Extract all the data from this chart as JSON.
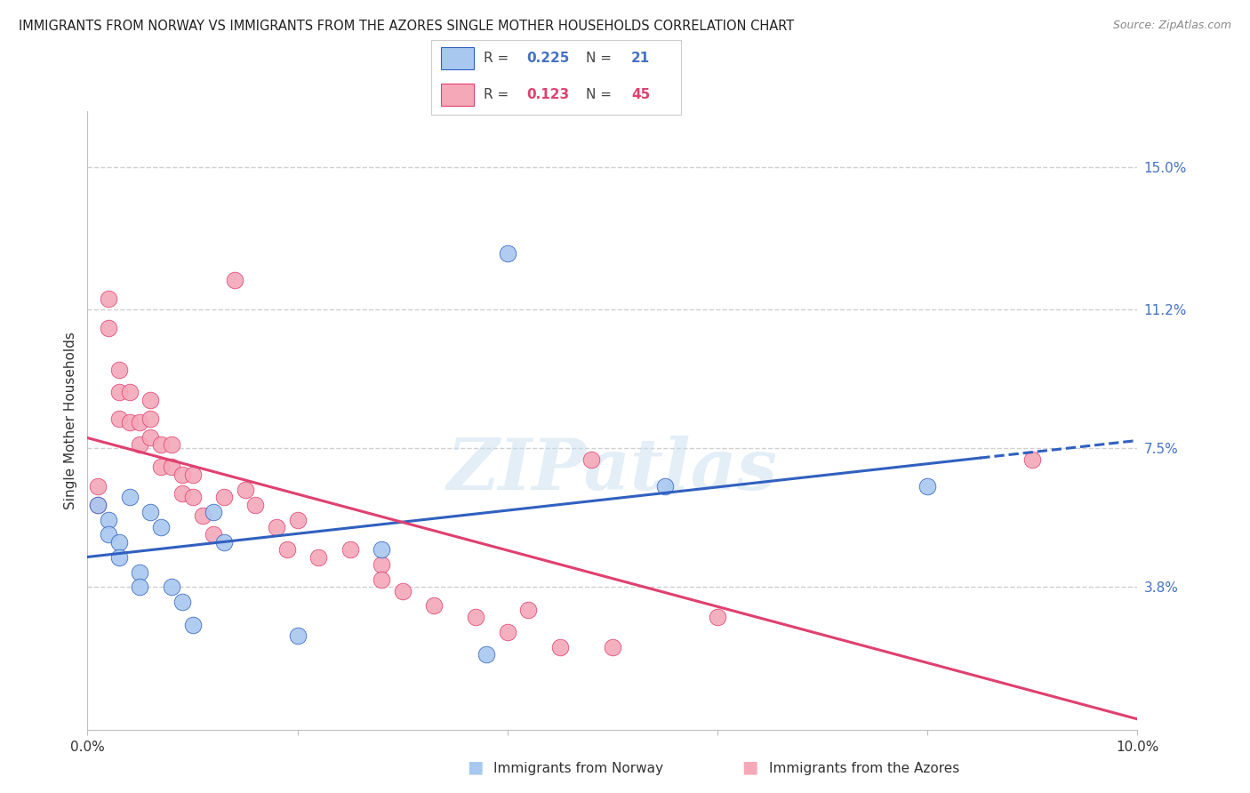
{
  "title": "IMMIGRANTS FROM NORWAY VS IMMIGRANTS FROM THE AZORES SINGLE MOTHER HOUSEHOLDS CORRELATION CHART",
  "source": "Source: ZipAtlas.com",
  "ylabel": "Single Mother Households",
  "ytick_labels": [
    "3.8%",
    "7.5%",
    "11.2%",
    "15.0%"
  ],
  "ytick_values": [
    0.038,
    0.075,
    0.112,
    0.15
  ],
  "xlim": [
    0.0,
    0.1
  ],
  "ylim": [
    0.0,
    0.165
  ],
  "norway_R": 0.225,
  "norway_N": 21,
  "azores_R": 0.123,
  "azores_N": 45,
  "norway_color": "#a8c8f0",
  "azores_color": "#f4a8b8",
  "norway_line_color": "#3060c0",
  "azores_line_color": "#e04070",
  "norway_x": [
    0.001,
    0.002,
    0.002,
    0.003,
    0.003,
    0.004,
    0.005,
    0.005,
    0.006,
    0.007,
    0.008,
    0.009,
    0.01,
    0.012,
    0.013,
    0.02,
    0.028,
    0.038,
    0.04,
    0.055,
    0.08
  ],
  "norway_y": [
    0.06,
    0.056,
    0.052,
    0.05,
    0.046,
    0.062,
    0.042,
    0.038,
    0.058,
    0.054,
    0.038,
    0.034,
    0.028,
    0.058,
    0.05,
    0.025,
    0.048,
    0.02,
    0.127,
    0.065,
    0.065
  ],
  "azores_x": [
    0.001,
    0.001,
    0.002,
    0.002,
    0.003,
    0.003,
    0.003,
    0.004,
    0.004,
    0.005,
    0.005,
    0.006,
    0.006,
    0.006,
    0.007,
    0.007,
    0.008,
    0.008,
    0.009,
    0.009,
    0.01,
    0.01,
    0.011,
    0.012,
    0.013,
    0.014,
    0.015,
    0.016,
    0.018,
    0.019,
    0.02,
    0.022,
    0.025,
    0.028,
    0.028,
    0.03,
    0.033,
    0.037,
    0.04,
    0.042,
    0.045,
    0.048,
    0.05,
    0.06,
    0.09
  ],
  "azores_y": [
    0.065,
    0.06,
    0.115,
    0.107,
    0.096,
    0.09,
    0.083,
    0.09,
    0.082,
    0.082,
    0.076,
    0.088,
    0.083,
    0.078,
    0.076,
    0.07,
    0.076,
    0.07,
    0.068,
    0.063,
    0.068,
    0.062,
    0.057,
    0.052,
    0.062,
    0.12,
    0.064,
    0.06,
    0.054,
    0.048,
    0.056,
    0.046,
    0.048,
    0.044,
    0.04,
    0.037,
    0.033,
    0.03,
    0.026,
    0.032,
    0.022,
    0.072,
    0.022,
    0.03,
    0.072
  ],
  "background_color": "#ffffff",
  "grid_color": "#cccccc",
  "watermark": "ZIPatlas"
}
